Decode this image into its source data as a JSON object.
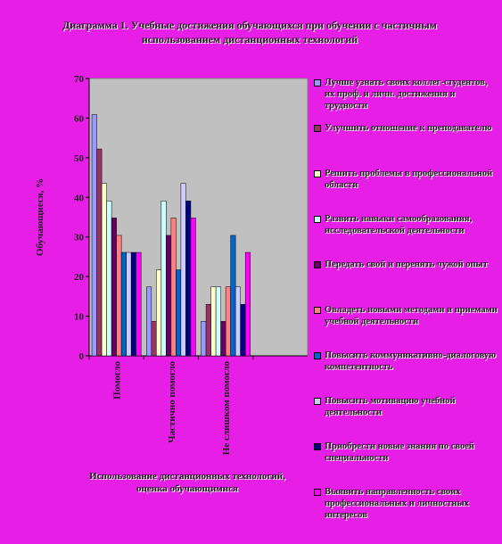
{
  "chart_data": {
    "type": "bar",
    "title": "Диаграмма 1. Учебные достижения обучающихся при обучении с частичным использованием дистанционных технологий",
    "y_label": "Обучающиеся, %",
    "x_label": "Использование дистанционных технологий, оценка обучающимися",
    "categories": [
      "Помогло",
      "Частично помогло",
      "Не слишком помогло",
      null
    ],
    "ylim": [
      0,
      70
    ],
    "yticks": [
      0,
      10,
      20,
      30,
      40,
      50,
      60,
      70
    ],
    "series": [
      {
        "name": "Лучше узнать своих коллег-студентов, их проф. и личн. достижения и трудности",
        "color": "#9999ff",
        "values": [
          60.9,
          17.4,
          8.7,
          null
        ]
      },
      {
        "name": "Улучшить отношение к преподавателю",
        "color": "#993366",
        "values": [
          52.2,
          8.7,
          13,
          null
        ]
      },
      {
        "name": "Решить проблемы в профессиональной области",
        "color": "#ffffcc",
        "values": [
          43.5,
          21.7,
          17.4,
          null
        ]
      },
      {
        "name": "Развить навыки самообразования, исследовательской деятельности",
        "color": "#ccffff",
        "values": [
          39.1,
          39.1,
          17.4,
          null
        ]
      },
      {
        "name": "Передать свой и перенять чужой опыт",
        "color": "#660066",
        "values": [
          34.8,
          30.4,
          8.7,
          null
        ]
      },
      {
        "name": "Овладеть новыми методами и приемами учебной деятельности",
        "color": "#ff8080",
        "values": [
          30.4,
          34.8,
          17.4,
          null
        ]
      },
      {
        "name": "Повысить коммуникативно-диалоговую компетентность",
        "color": "#0066cc",
        "values": [
          26.1,
          21.7,
          30.4,
          null
        ]
      },
      {
        "name": "Повысить мотивацию учебной деятельности",
        "color": "#ccccff",
        "values": [
          26.1,
          43.5,
          17.4,
          null
        ]
      },
      {
        "name": "Приобрести новые знания по своей специальности",
        "color": "#000080",
        "values": [
          26.1,
          39.1,
          13,
          null
        ]
      },
      {
        "name": "Выявить направленность своих профессиональных и личностных интересов",
        "color": "#ff00ff",
        "values": [
          26.1,
          34.8,
          26.1,
          null
        ]
      }
    ]
  }
}
